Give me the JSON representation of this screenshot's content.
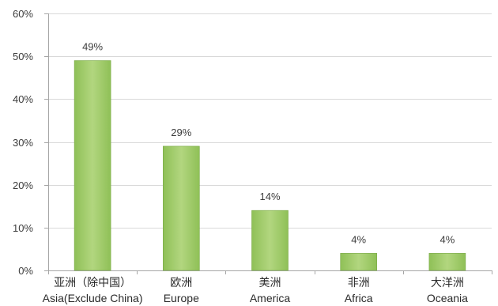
{
  "chart_data": {
    "type": "bar",
    "categories": [
      {
        "zh": "亚洲（除中国）",
        "en": "Asia(Exclude China)"
      },
      {
        "zh": "欧洲",
        "en": "Europe"
      },
      {
        "zh": "美洲",
        "en": "America"
      },
      {
        "zh": "非洲",
        "en": "Africa"
      },
      {
        "zh": "大洋洲",
        "en": "Oceania"
      }
    ],
    "values": [
      49,
      29,
      14,
      4,
      4
    ],
    "data_labels": [
      "49%",
      "29%",
      "14%",
      "4%",
      "4%"
    ],
    "ylim": [
      0,
      60
    ],
    "yticks": [
      0,
      10,
      20,
      30,
      40,
      50,
      60
    ],
    "ytick_labels": [
      "0%",
      "10%",
      "20%",
      "30%",
      "40%",
      "50%",
      "60%"
    ],
    "title": "",
    "xlabel": "",
    "ylabel": "",
    "grid": true,
    "colors": {
      "bar_fill": "#8fc057",
      "bar_highlight": "#b2d67f",
      "bar_edge": "#79a847",
      "grid": "#d9d9d9",
      "axis": "#a6a6a6"
    }
  }
}
